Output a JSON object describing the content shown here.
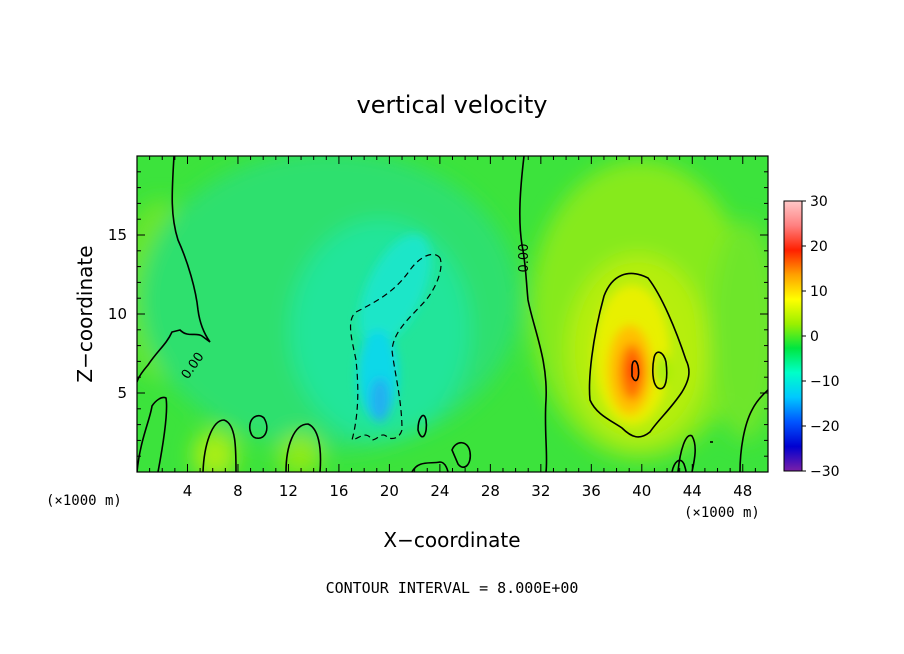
{
  "chart_data": {
    "type": "heatmap",
    "title": "vertical velocity",
    "xlabel": "X−coordinate",
    "ylabel": "Z−coordinate",
    "x_unit": "(×1000 m)",
    "x_unit_right": "(×1000 m)",
    "footer": "CONTOUR INTERVAL = 8.000E+00",
    "xlim": [
      0,
      50
    ],
    "ylim": [
      0,
      20
    ],
    "x_ticks": [
      "4",
      "8",
      "12",
      "16",
      "20",
      "24",
      "28",
      "32",
      "36",
      "40",
      "44",
      "48"
    ],
    "y_ticks": [
      "5",
      "10",
      "15"
    ],
    "colorbar": {
      "range": [
        -30,
        30
      ],
      "ticks": [
        "30",
        "20",
        "10",
        "0",
        "−10",
        "−20",
        "−30"
      ],
      "colors": [
        "#7a1fa8",
        "#0000d0",
        "#0055ff",
        "#00c8ff",
        "#00ffc8",
        "#00e640",
        "#9bf000",
        "#ffff00",
        "#ffa000",
        "#ff2000",
        "#ff8080",
        "#ffc8c8"
      ]
    },
    "contour_labels": [
      "0.00",
      "0.00"
    ],
    "features": [
      {
        "kind": "updraft",
        "x": 39,
        "z": 6.5,
        "w": 22
      },
      {
        "kind": "downdraft",
        "x": 19.5,
        "z": 5,
        "w": -9
      }
    ]
  }
}
